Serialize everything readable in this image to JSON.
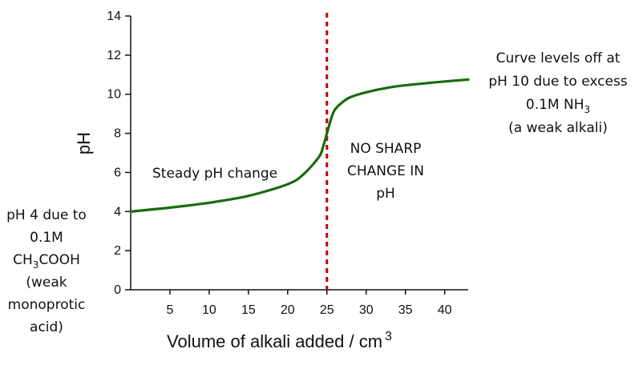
{
  "chart_data": {
    "type": "line",
    "title": "",
    "xlabel": "Volume of alkali added / cm",
    "xlabel_superscript": "3",
    "ylabel": "pH",
    "xlim": [
      0,
      43
    ],
    "ylim": [
      0,
      14
    ],
    "xticks": [
      5,
      10,
      15,
      20,
      25,
      30,
      35,
      40
    ],
    "yticks": [
      0,
      2,
      4,
      6,
      8,
      10,
      12,
      14
    ],
    "grid": false,
    "equivalence_line": {
      "x": 25,
      "color": "#c00000",
      "style": "dashed"
    },
    "series": [
      {
        "name": "pH curve",
        "color": "#1a6b10",
        "x": [
          0,
          5,
          10,
          15,
          20,
          22,
          24,
          24.5,
          25,
          25.5,
          26,
          27,
          28,
          30,
          33,
          36,
          40,
          43
        ],
        "y": [
          4.0,
          4.2,
          4.45,
          4.8,
          5.4,
          5.9,
          6.8,
          7.3,
          8.0,
          8.7,
          9.2,
          9.6,
          9.85,
          10.1,
          10.35,
          10.5,
          10.65,
          10.75
        ]
      }
    ],
    "annotations": {
      "left": {
        "lines": [
          {
            "text": "pH 4 due to"
          },
          {
            "text": "0.1M"
          },
          {
            "text": "CH",
            "sub": "3",
            "rest": "COOH"
          },
          {
            "text": "(weak"
          },
          {
            "text": "monoprotic"
          },
          {
            "text": "acid)"
          }
        ]
      },
      "steady": "Steady pH change",
      "no_sharp": [
        "NO SHARP",
        "CHANGE IN",
        "pH"
      ],
      "right": {
        "lines": [
          {
            "text": "Curve levels off at"
          },
          {
            "text": "pH 10 due to excess"
          },
          {
            "text": "0.1M NH",
            "sub": "3"
          },
          {
            "text": "(a weak alkali)"
          }
        ]
      }
    },
    "colors": {
      "axis": "#111111",
      "curve": "#1a6b10",
      "equivalence": "#c00000"
    }
  }
}
